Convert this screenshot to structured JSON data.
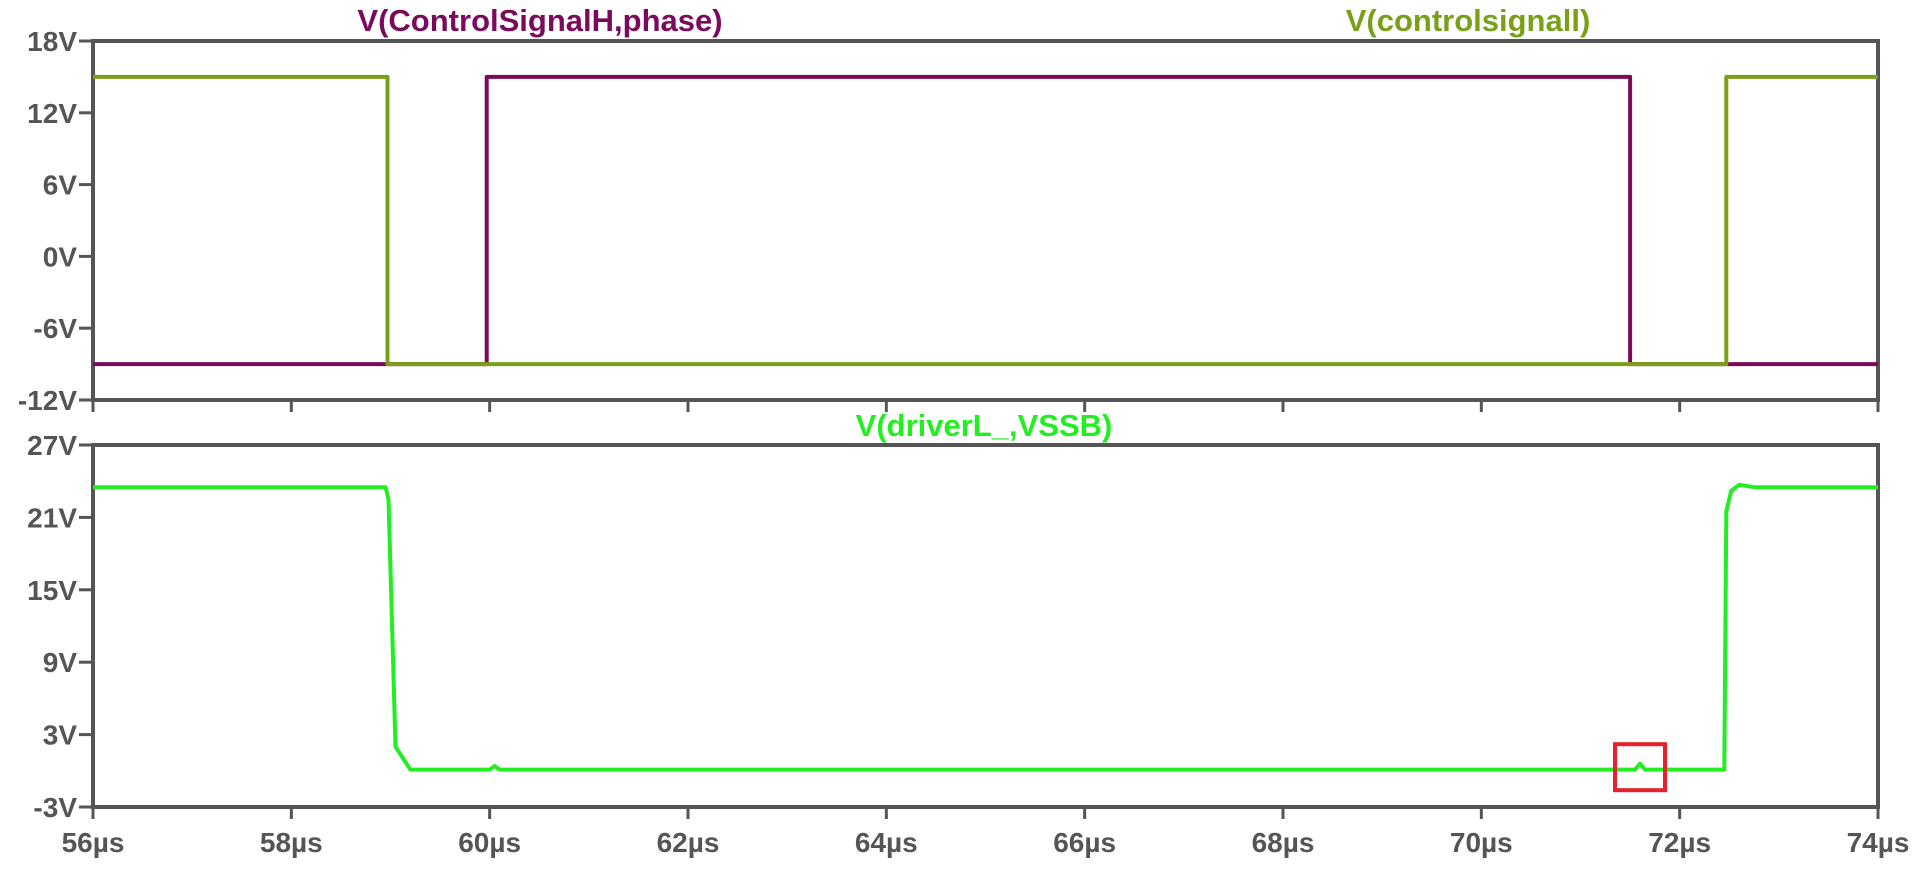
{
  "chart_data": [
    {
      "type": "line",
      "title": "",
      "xlabel": "",
      "ylabel": "",
      "xlim": [
        56,
        74
      ],
      "ylim": [
        -12,
        18
      ],
      "grid": false,
      "x_unit": "µs",
      "y_unit": "V",
      "x_ticks": [
        "56µs",
        "58µs",
        "60µs",
        "62µs",
        "64µs",
        "66µs",
        "68µs",
        "70µs",
        "72µs",
        "74µs"
      ],
      "y_ticks": [
        "18V",
        "12V",
        "6V",
        "0V",
        "-6V",
        "-12V"
      ],
      "series": [
        {
          "name": "V(ControlSignalH,phase)",
          "color": "#7b0a5c",
          "x": [
            56,
            59.97,
            59.97,
            71.5,
            71.5,
            74
          ],
          "y": [
            -9,
            -9,
            15,
            15,
            -9,
            -9
          ]
        },
        {
          "name": "V(controlsignall)",
          "color": "#7aa018",
          "x": [
            56,
            58.97,
            58.97,
            72.47,
            72.47,
            74
          ],
          "y": [
            15,
            15,
            -9,
            -9,
            15,
            15
          ]
        }
      ]
    },
    {
      "type": "line",
      "title": "",
      "xlabel": "",
      "ylabel": "",
      "xlim": [
        56,
        74
      ],
      "ylim": [
        -3,
        27
      ],
      "grid": false,
      "x_unit": "µs",
      "y_unit": "V",
      "x_ticks": [
        "56µs",
        "58µs",
        "60µs",
        "62µs",
        "64µs",
        "66µs",
        "68µs",
        "70µs",
        "72µs",
        "74µs"
      ],
      "y_ticks": [
        "27V",
        "21V",
        "15V",
        "9V",
        "3V",
        "-3V"
      ],
      "series": [
        {
          "name": "V(driverL_,VSSB)",
          "color": "#22ee22",
          "x": [
            56,
            58.95,
            58.98,
            59.05,
            59.2,
            60.0,
            60.05,
            60.1,
            61,
            71.55,
            71.6,
            71.65,
            72.45,
            72.47,
            72.52,
            72.6,
            72.75,
            74
          ],
          "y": [
            23.5,
            23.5,
            22.5,
            2.0,
            0.1,
            0.1,
            0.4,
            0.1,
            0.1,
            0.1,
            0.6,
            0.1,
            0.1,
            21.5,
            23.2,
            23.7,
            23.5,
            23.5
          ]
        }
      ]
    }
  ],
  "annotation": {
    "type": "highlight-box",
    "color": "#e8202a",
    "x": 71.6,
    "y": 0.3
  }
}
